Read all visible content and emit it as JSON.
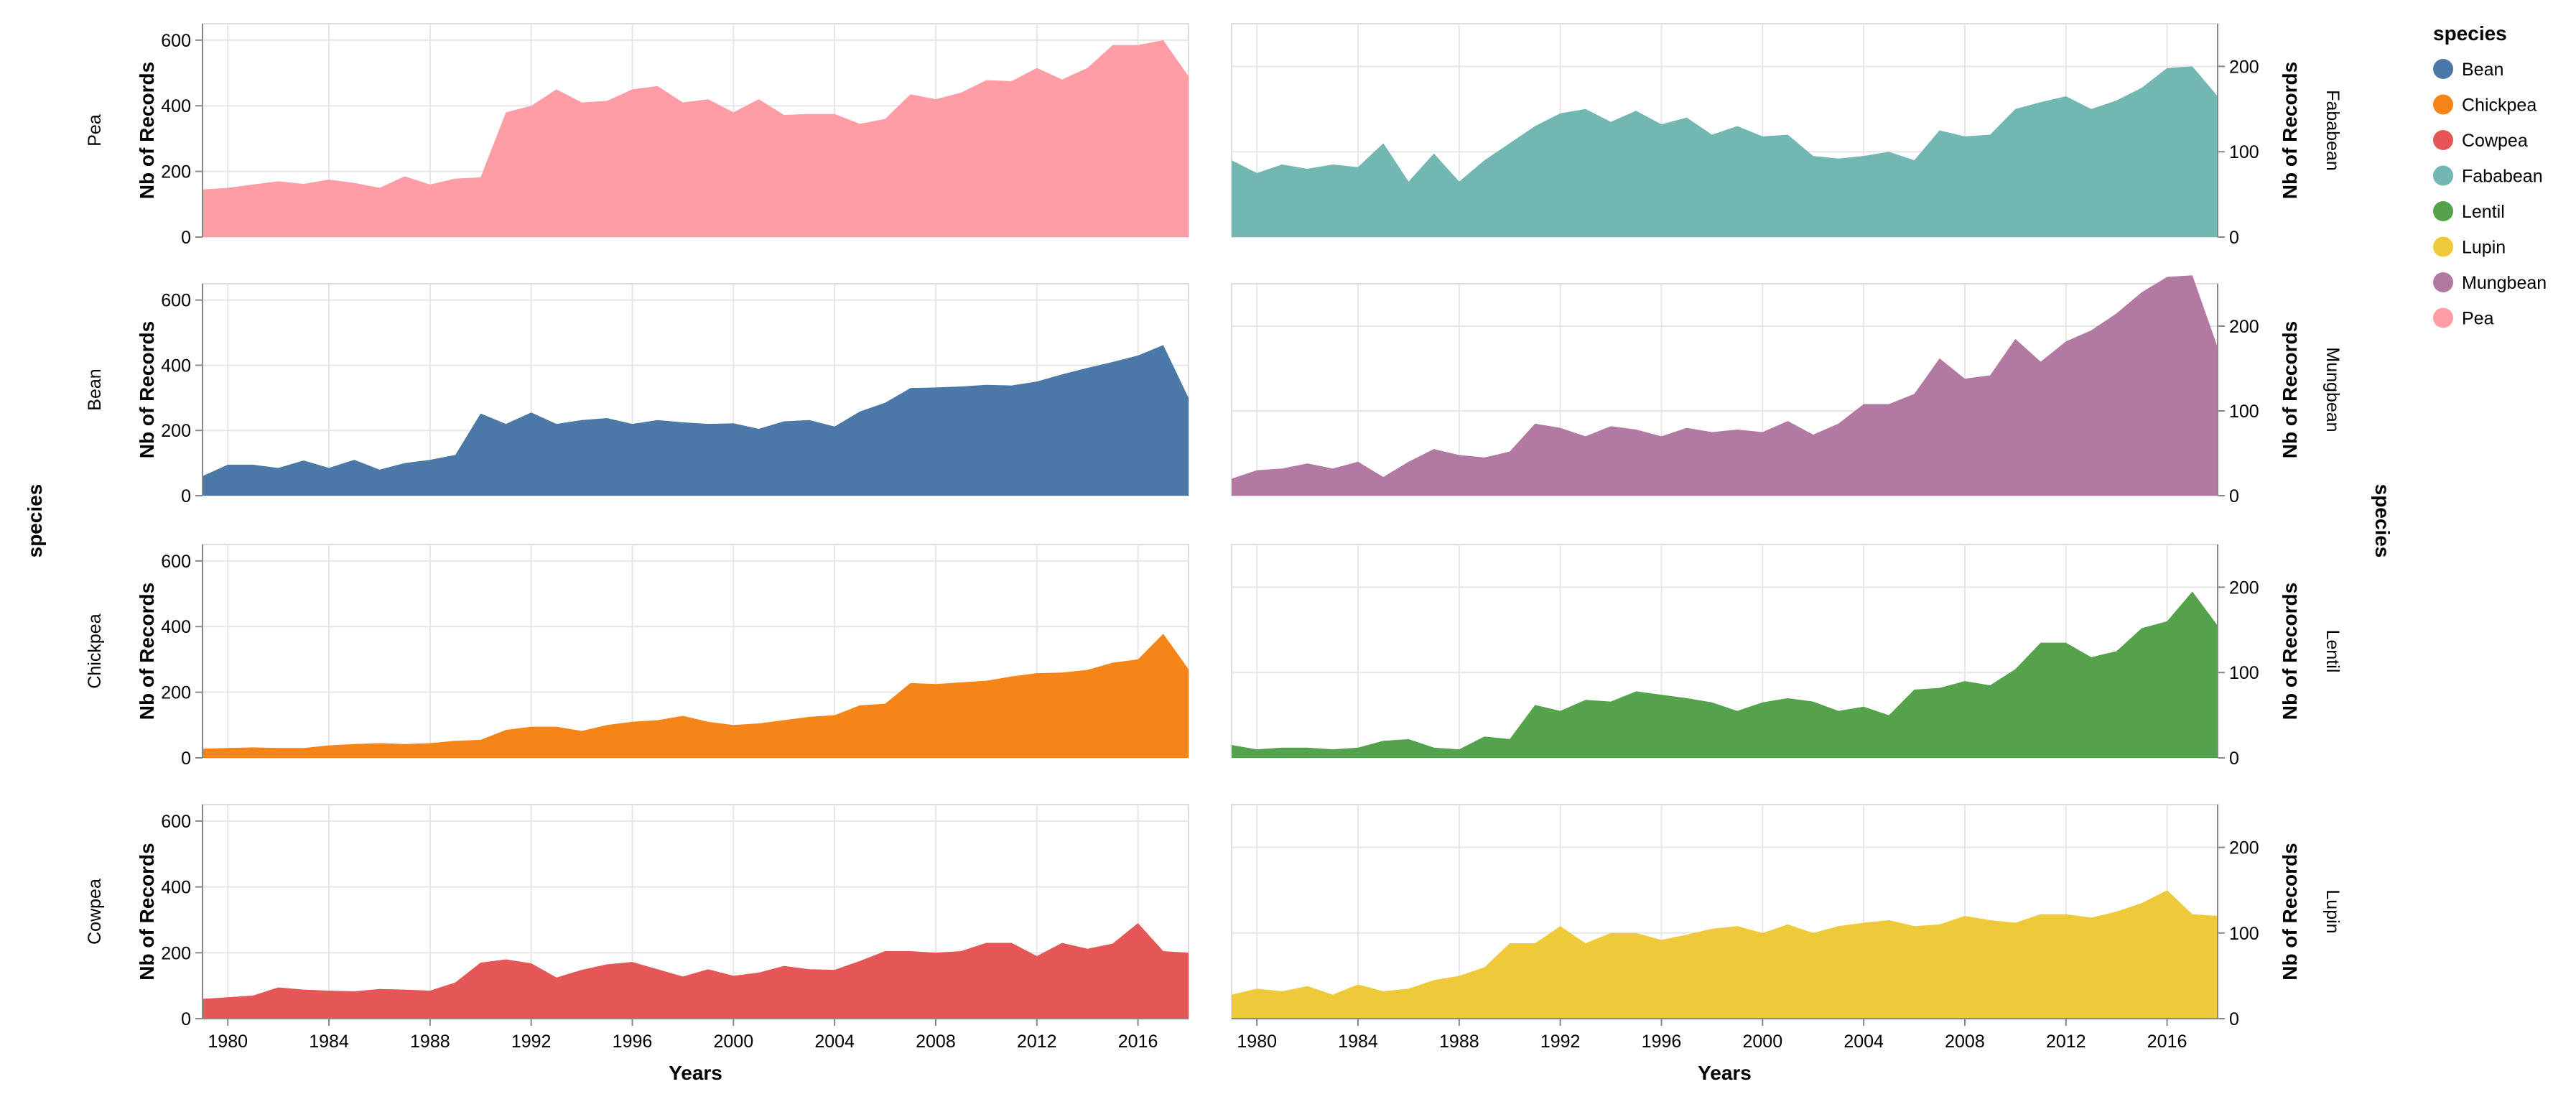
{
  "chart_data": {
    "type": "area",
    "layout": "small-multiples-grid",
    "facet_field": "species",
    "facet_label": "species",
    "x_field": "Years",
    "xlabel": "Years",
    "ylabel": "Nb of Records",
    "x_range": [
      1979,
      2018
    ],
    "x_ticks": [
      1980,
      1984,
      1988,
      1992,
      1996,
      2000,
      2004,
      2008,
      2012,
      2016
    ],
    "grid": true,
    "years": [
      1979,
      1980,
      1981,
      1982,
      1983,
      1984,
      1985,
      1986,
      1987,
      1988,
      1989,
      1990,
      1991,
      1992,
      1993,
      1994,
      1995,
      1996,
      1997,
      1998,
      1999,
      2000,
      2001,
      2002,
      2003,
      2004,
      2005,
      2006,
      2007,
      2008,
      2009,
      2010,
      2011,
      2012,
      2013,
      2014,
      2015,
      2016,
      2017,
      2018
    ],
    "columns": [
      {
        "y_axis": "left",
        "ylim": [
          0,
          650
        ],
        "y_ticks": [
          0,
          200,
          400,
          600
        ],
        "facet_label_side": "left",
        "panels": [
          "Pea",
          "Bean",
          "Chickpea",
          "Cowpea"
        ]
      },
      {
        "y_axis": "right",
        "ylim": [
          0,
          250
        ],
        "y_ticks": [
          0,
          100,
          200
        ],
        "facet_label_side": "right",
        "panels": [
          "Fababean",
          "Mungbean",
          "Lentil",
          "Lupin"
        ]
      }
    ],
    "legend": {
      "title": "species",
      "position": "top-right",
      "entries": [
        "Bean",
        "Chickpea",
        "Cowpea",
        "Fababean",
        "Lentil",
        "Lupin",
        "Mungbean",
        "Pea"
      ]
    },
    "series": [
      {
        "name": "Pea",
        "color": "#ff9da6",
        "values": [
          145,
          150,
          160,
          170,
          162,
          175,
          165,
          150,
          185,
          160,
          178,
          182,
          380,
          400,
          450,
          410,
          415,
          450,
          460,
          410,
          420,
          380,
          420,
          372,
          375,
          375,
          345,
          360,
          435,
          420,
          440,
          478,
          475,
          515,
          480,
          515,
          585,
          585,
          600,
          490
        ]
      },
      {
        "name": "Bean",
        "color": "#4c78a8",
        "values": [
          60,
          95,
          95,
          85,
          108,
          85,
          110,
          80,
          100,
          110,
          125,
          252,
          220,
          255,
          220,
          232,
          238,
          220,
          232,
          225,
          220,
          222,
          205,
          228,
          232,
          212,
          258,
          285,
          330,
          332,
          335,
          340,
          338,
          350,
          372,
          392,
          410,
          430,
          462,
          300
        ]
      },
      {
        "name": "Chickpea",
        "color": "#f58518",
        "values": [
          28,
          30,
          32,
          30,
          30,
          38,
          42,
          45,
          42,
          45,
          52,
          55,
          85,
          95,
          95,
          82,
          100,
          110,
          115,
          128,
          110,
          100,
          105,
          115,
          125,
          130,
          160,
          165,
          228,
          225,
          230,
          235,
          248,
          258,
          260,
          268,
          290,
          300,
          378,
          270
        ]
      },
      {
        "name": "Cowpea",
        "color": "#e45756",
        "values": [
          60,
          65,
          70,
          95,
          88,
          85,
          83,
          90,
          88,
          85,
          110,
          170,
          180,
          168,
          125,
          148,
          165,
          172,
          150,
          128,
          150,
          130,
          140,
          160,
          150,
          148,
          175,
          205,
          205,
          200,
          205,
          230,
          230,
          190,
          230,
          212,
          228,
          290,
          205,
          200
        ]
      },
      {
        "name": "Fababean",
        "color": "#72b7b2",
        "values": [
          90,
          75,
          85,
          80,
          85,
          82,
          110,
          65,
          98,
          65,
          90,
          110,
          130,
          145,
          150,
          135,
          148,
          132,
          140,
          120,
          130,
          118,
          120,
          95,
          92,
          95,
          100,
          90,
          125,
          118,
          120,
          150,
          158,
          165,
          150,
          160,
          175,
          198,
          200,
          165
        ]
      },
      {
        "name": "Mungbean",
        "color": "#b279a2",
        "values": [
          20,
          30,
          32,
          38,
          32,
          40,
          22,
          40,
          55,
          48,
          45,
          52,
          85,
          80,
          70,
          82,
          78,
          70,
          80,
          75,
          78,
          75,
          88,
          72,
          85,
          108,
          108,
          120,
          162,
          138,
          142,
          185,
          158,
          182,
          195,
          215,
          240,
          258,
          260,
          175
        ]
      },
      {
        "name": "Lentil",
        "color": "#54a24b",
        "values": [
          15,
          10,
          12,
          12,
          10,
          12,
          20,
          22,
          12,
          10,
          25,
          22,
          62,
          55,
          68,
          66,
          78,
          74,
          70,
          65,
          55,
          65,
          70,
          66,
          55,
          60,
          50,
          80,
          82,
          90,
          85,
          104,
          135,
          135,
          118,
          125,
          152,
          160,
          195,
          155
        ]
      },
      {
        "name": "Lupin",
        "color": "#eeca3b",
        "values": [
          28,
          35,
          32,
          38,
          28,
          40,
          32,
          35,
          45,
          50,
          60,
          88,
          88,
          108,
          88,
          100,
          100,
          92,
          98,
          105,
          108,
          100,
          110,
          100,
          108,
          112,
          115,
          108,
          110,
          120,
          115,
          112,
          122,
          122,
          118,
          125,
          135,
          150,
          122,
          120
        ]
      }
    ]
  }
}
